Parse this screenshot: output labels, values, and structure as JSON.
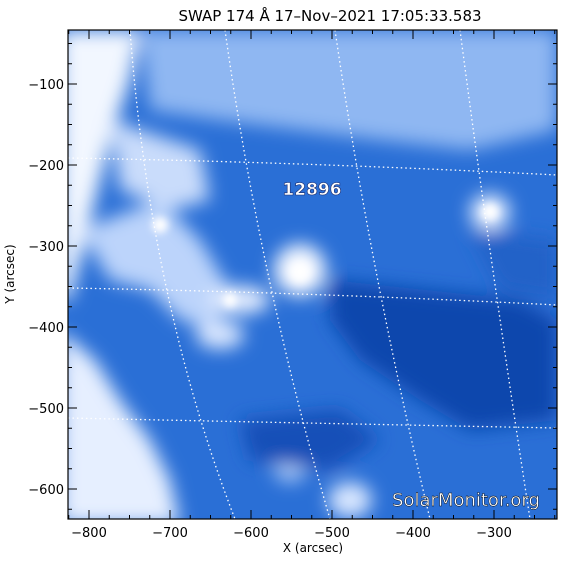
{
  "title": "SWAP 174 Å 17–Nov–2021 17:05:33.583",
  "x_axis": {
    "label": "X (arcsec)",
    "ticks": [
      {
        "value": -800,
        "label": "−800"
      },
      {
        "value": -700,
        "label": "−700"
      },
      {
        "value": -600,
        "label": "−600"
      },
      {
        "value": -500,
        "label": "−500"
      },
      {
        "value": -400,
        "label": "−400"
      },
      {
        "value": -300,
        "label": "−300"
      }
    ]
  },
  "y_axis": {
    "label": "Y (arcsec)",
    "ticks": [
      {
        "value": -100,
        "label": "−100"
      },
      {
        "value": -200,
        "label": "−200"
      },
      {
        "value": -300,
        "label": "−300"
      },
      {
        "value": -400,
        "label": "−400"
      },
      {
        "value": -500,
        "label": "−500"
      },
      {
        "value": -600,
        "label": "−600"
      }
    ]
  },
  "active_region": {
    "label": "12896"
  },
  "watermark": "SolarMonitor.org",
  "colors": {
    "image_base": "#1f63cf",
    "image_bright": "#ffffff",
    "image_dark": "#0d3f9c",
    "grid": "#ffffff"
  }
}
